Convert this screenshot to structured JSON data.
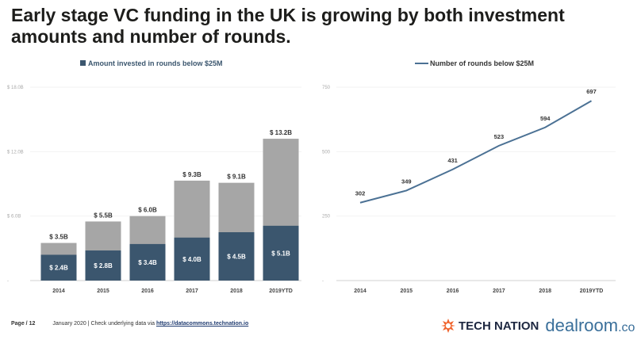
{
  "title": "Early stage VC funding in the UK is growing by both investment amounts and number of rounds.",
  "colors": {
    "dark": "#3b566e",
    "gray": "#a6a6a6",
    "line": "#4b7194",
    "text": "#1d1d1b",
    "orange": "#f0642d"
  },
  "chart_data": [
    {
      "type": "bar",
      "stacked": true,
      "legend": "Amount invested in rounds below $25M",
      "legend_position": "top",
      "categories": [
        "2014",
        "2015",
        "2016",
        "2017",
        "2018",
        "2019YTD"
      ],
      "series": [
        {
          "name": "Amount invested in rounds below $25M",
          "values": [
            2.4,
            2.8,
            3.4,
            4.0,
            4.5,
            5.1
          ],
          "labels": [
            "$ 2.4B",
            "$ 2.8B",
            "$ 3.4B",
            "$ 4.0B",
            "$ 4.5B",
            "$ 5.1B"
          ],
          "color": "#3b566e"
        },
        {
          "values": [
            3.5,
            5.5,
            6.0,
            9.3,
            9.1,
            13.2
          ],
          "labels": [
            "$ 3.5B",
            "$ 5.5B",
            "$ 6.0B",
            "$ 9.3B",
            "$ 9.1B",
            "$ 13.2B"
          ],
          "color": "#a6a6a6",
          "note_total": true
        }
      ],
      "yticks": [
        0,
        6,
        12,
        18
      ],
      "ytick_labels": [
        "-",
        "$ 6.0B",
        "$ 12.0B",
        "$ 18.0B"
      ],
      "ylim": [
        0,
        18
      ],
      "grid": true
    },
    {
      "type": "line",
      "legend": "Number of rounds below $25M",
      "legend_position": "top",
      "categories": [
        "2014",
        "2015",
        "2016",
        "2017",
        "2018",
        "2019YTD"
      ],
      "series": [
        {
          "name": "Number of rounds below $25M",
          "values": [
            302,
            349,
            431,
            523,
            594,
            697
          ],
          "color": "#4b7194"
        }
      ],
      "yticks": [
        0,
        250,
        500,
        750
      ],
      "ytick_labels": [
        "-",
        "250",
        "500",
        "750"
      ],
      "ylim": [
        0,
        750
      ],
      "grid": true
    }
  ],
  "footer": {
    "page": "Page / 12",
    "text": "January 2020 | Check underlying data via ",
    "link": "https://datacommons.technation.io"
  },
  "logos": {
    "tech_nation": "TECH NATION",
    "dealroom": "dealroom",
    "dealroom_suffix": ".co"
  }
}
